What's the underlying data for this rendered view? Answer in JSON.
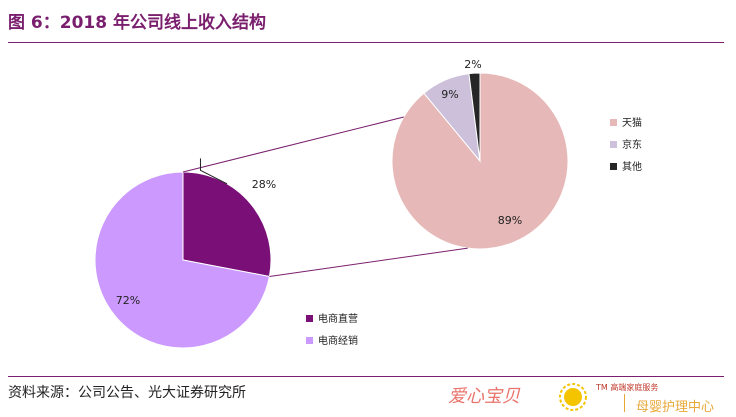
{
  "header": {
    "title": "图 6：2018 年公司线上收入结构"
  },
  "footer": {
    "source": "资料来源：公司公告、光大证券研究所"
  },
  "logo": {
    "brand_text": "爱心宝贝",
    "tm_text": "TM 高端家庭服务",
    "sub_text": "母婴护理中心"
  },
  "chart_data": [
    {
      "type": "pie",
      "slices": [
        {
          "label": "电商直营",
          "value": 28,
          "display": "28%",
          "color": "#7a0f78"
        },
        {
          "label": "电商经销",
          "value": 72,
          "display": "72%",
          "color": "#cc99ff"
        }
      ],
      "legend": [
        "电商直营",
        "电商经销"
      ],
      "legend_position": "bottom-right"
    },
    {
      "type": "pie",
      "slices": [
        {
          "label": "天猫",
          "value": 89,
          "display": "89%",
          "color": "#e6b8b7"
        },
        {
          "label": "京东",
          "value": 9,
          "display": "9%",
          "color": "#ccc0da"
        },
        {
          "label": "其他",
          "value": 2,
          "display": "2%",
          "color": "#262626"
        }
      ],
      "legend": [
        "天猫",
        "京东",
        "其他"
      ],
      "legend_position": "right"
    }
  ]
}
